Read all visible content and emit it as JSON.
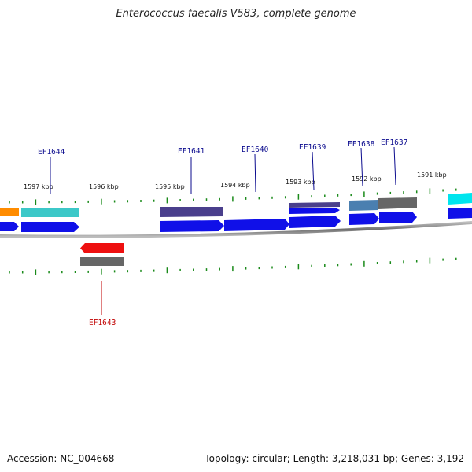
{
  "title": "Enterococcus faecalis V583, complete genome",
  "footer": {
    "accession": "Accession: NC_004668",
    "summary": "Topology: circular; Length: 3,218,031 bp; Genes: 3,192"
  },
  "scale_labels": [
    "1597 kbp",
    "1596 kbp",
    "1595 kbp",
    "1594 kbp",
    "1593 kbp",
    "1592 kbp",
    "1591 kbp"
  ],
  "gene_labels": [
    {
      "id": "EF1644",
      "strand": "forward"
    },
    {
      "id": "EF1641",
      "strand": "forward"
    },
    {
      "id": "EF1640",
      "strand": "forward"
    },
    {
      "id": "EF1639",
      "strand": "forward"
    },
    {
      "id": "EF1638",
      "strand": "forward"
    },
    {
      "id": "EF1637",
      "strand": "forward"
    },
    {
      "id": "EF1643",
      "strand": "reverse"
    }
  ],
  "colors": {
    "forward_label": "#0b0b8e",
    "reverse_label": "#c00000",
    "forward_gene": "#1010e8",
    "reverse_gene": "#ee1010",
    "tick": "#1a8a1a",
    "backbone": "#8a8a8a",
    "cog_orange": "#ff8c00",
    "cog_cyan": "#3cc8c8",
    "cog_slate": "#4a3f8c",
    "cog_gray": "#666666",
    "cog_steel": "#4a7fb0",
    "cog_bright_cyan": "#00e5ee"
  }
}
